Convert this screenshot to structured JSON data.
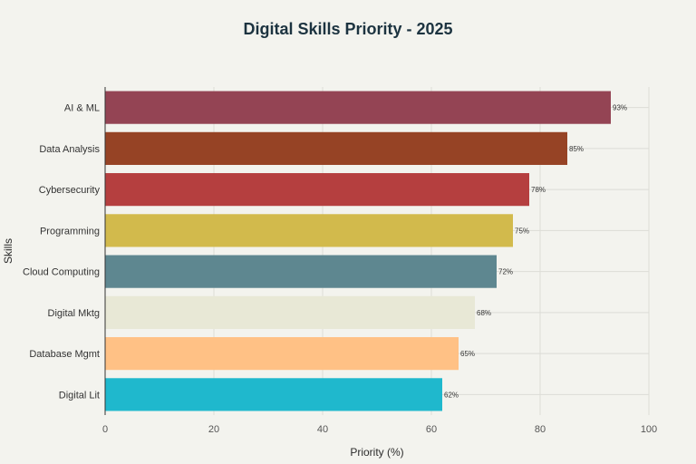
{
  "chart_data": {
    "type": "bar",
    "orientation": "horizontal",
    "title": "Digital Skills Priority - 2025",
    "xlabel": "Priority (%)",
    "ylabel": "Skills",
    "xlim": [
      0,
      100
    ],
    "xticks": [
      "0",
      "20",
      "40",
      "60",
      "80",
      "100"
    ],
    "grid": true,
    "categories": [
      "AI & ML",
      "Data Analysis",
      "Cybersecurity",
      "Programming",
      "Cloud Computing",
      "Digital Mktg",
      "Database Mgmt",
      "Digital Lit"
    ],
    "values": [
      93,
      85,
      78,
      75,
      72,
      68,
      65,
      62
    ],
    "value_labels": [
      "93%",
      "85%",
      "78%",
      "75%",
      "72%",
      "68%",
      "65%",
      "62%"
    ],
    "colors": [
      "#944454",
      "#964325",
      "#b53f3f",
      "#d2ba4c",
      "#5e8790",
      "#e8e8d6",
      "#ffc185",
      "#1fb8cd"
    ]
  }
}
